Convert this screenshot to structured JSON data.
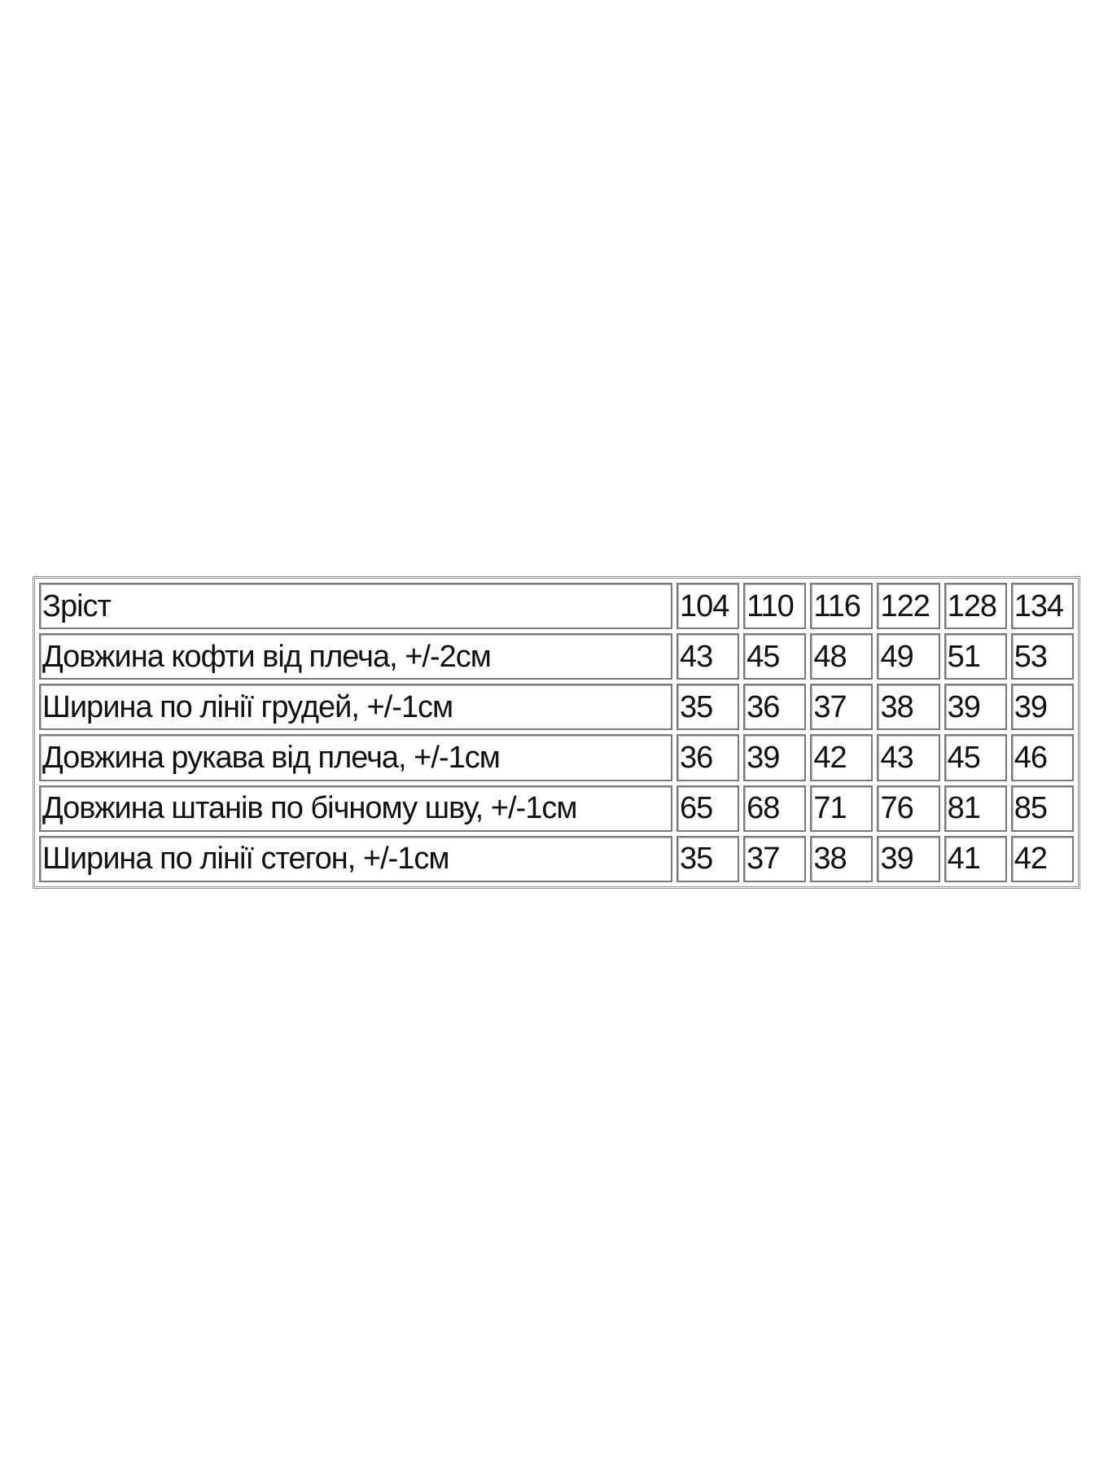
{
  "table": {
    "header": {
      "label": "Зріст",
      "sizes": [
        "104",
        "110",
        "116",
        "122",
        "128",
        "134"
      ]
    },
    "rows": [
      {
        "label": "Довжина кофти від плеча, +/-2см",
        "values": [
          "43",
          "45",
          "48",
          "49",
          "51",
          "53"
        ]
      },
      {
        "label": "Ширина по лінії грудей, +/-1см",
        "values": [
          "35",
          "36",
          "37",
          "38",
          "39",
          "39"
        ]
      },
      {
        "label": "Довжина рукава від плеча, +/-1см",
        "values": [
          "36",
          "39",
          "42",
          "43",
          "45",
          "46"
        ]
      },
      {
        "label": "Довжина штанів по бічному шву, +/-1см",
        "values": [
          "65",
          "68",
          "71",
          "76",
          "81",
          "85"
        ]
      },
      {
        "label": "Ширина по лінії стегон, +/-1см",
        "values": [
          "35",
          "37",
          "38",
          "39",
          "41",
          "42"
        ]
      }
    ]
  }
}
